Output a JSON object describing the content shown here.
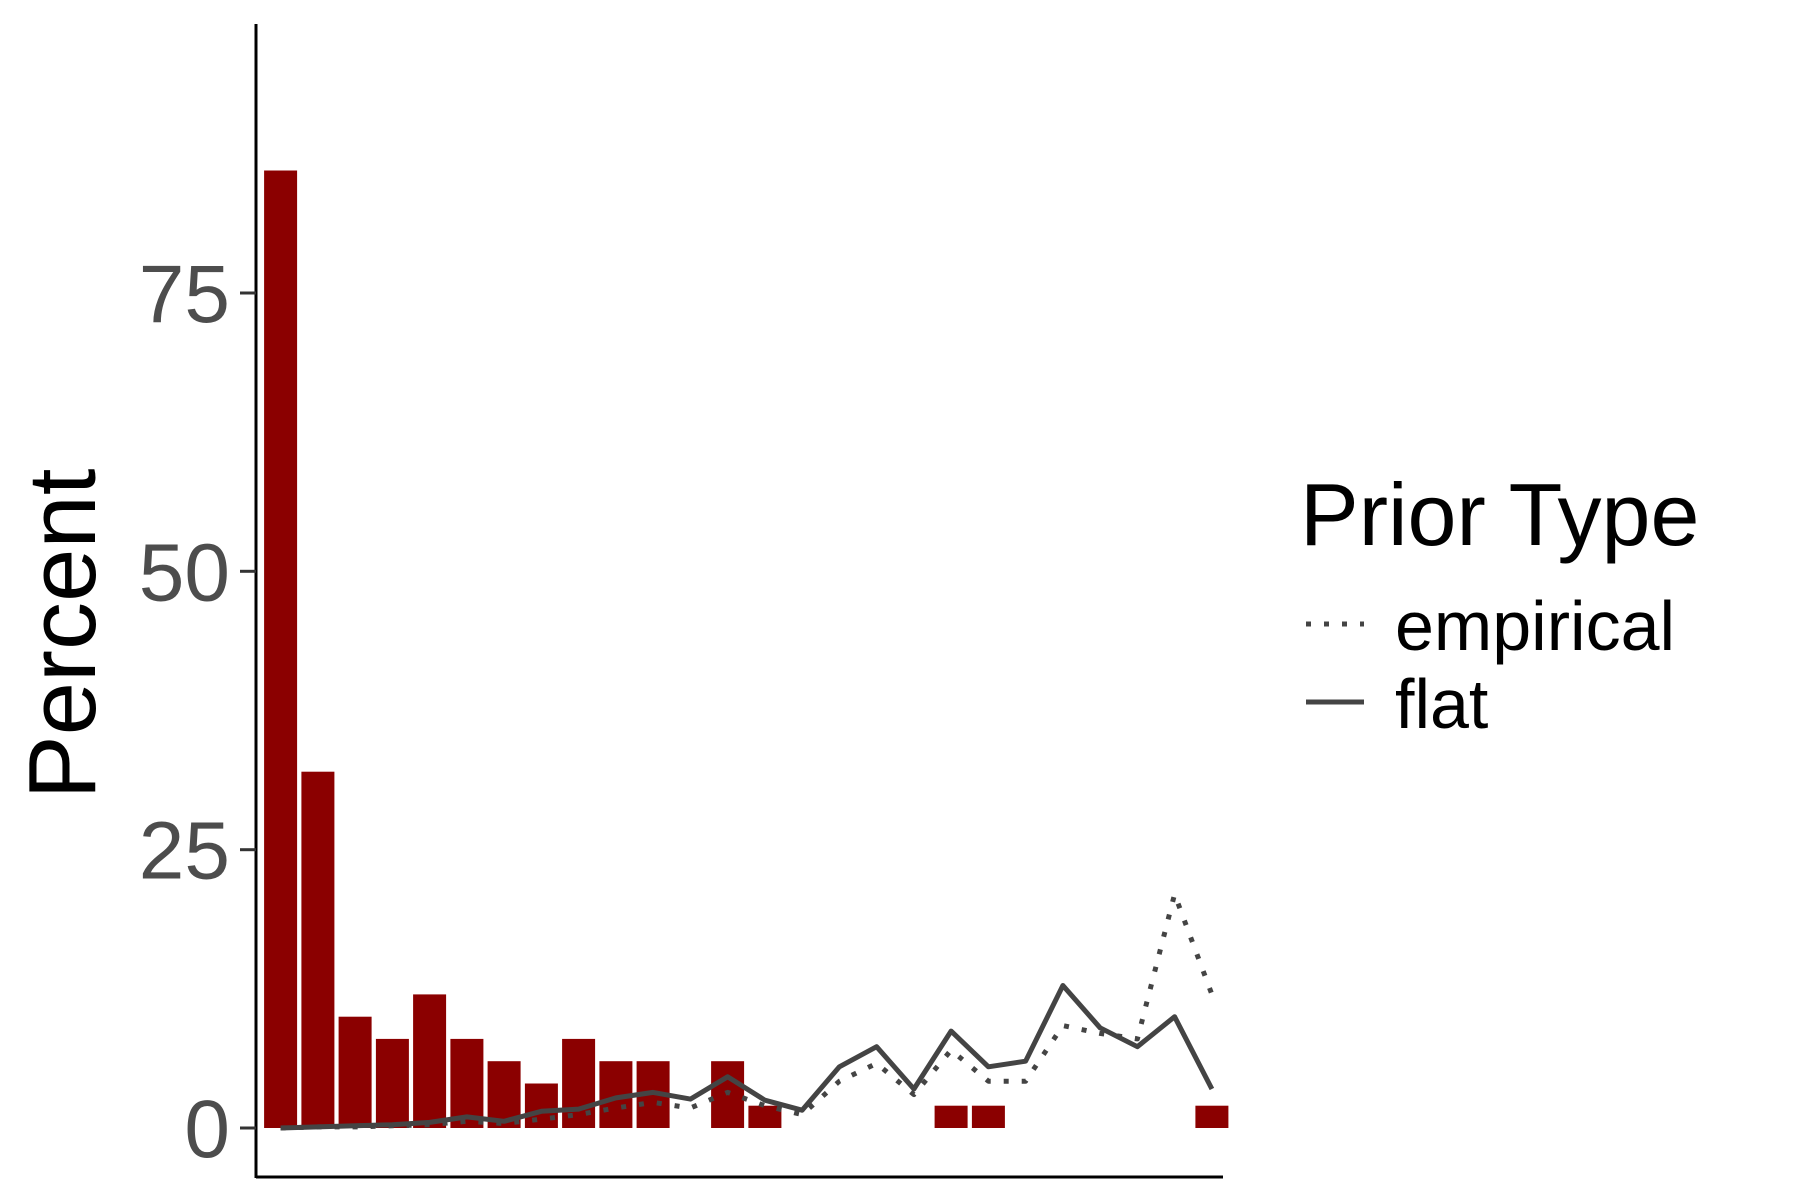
{
  "chart_data": {
    "type": "bar",
    "title": "",
    "xlabel": "",
    "ylabel": "Percent",
    "ylim": [
      0,
      100
    ],
    "yticks": [
      0,
      25,
      50,
      75
    ],
    "grid": false,
    "legend": {
      "title": "Prior Type",
      "placement": "right",
      "entries": [
        {
          "name": "empirical",
          "linestyle": "dotted"
        },
        {
          "name": "flat",
          "linestyle": "solid"
        }
      ]
    },
    "colors": {
      "bars": "#8b0000",
      "lines": "#444444",
      "axis": "#000000",
      "tick_text": "#4d4d4d"
    },
    "bars": {
      "x": [
        1,
        2,
        3,
        4,
        5,
        6,
        7,
        8,
        9,
        10,
        11,
        13,
        14,
        19,
        20,
        26
      ],
      "values": [
        86,
        32,
        10,
        8,
        12,
        8,
        6,
        4,
        8,
        6,
        6,
        6,
        2,
        2,
        2,
        2
      ]
    },
    "series": [
      {
        "name": "empirical",
        "linestyle": "dotted",
        "x": [
          1,
          2,
          3,
          4,
          5,
          6,
          7,
          8,
          9,
          10,
          11,
          12,
          13,
          14,
          15,
          16,
          17,
          18,
          19,
          20,
          21,
          22,
          23,
          24,
          25,
          26
        ],
        "values": [
          0,
          0.1,
          0.1,
          0.2,
          0.3,
          0.6,
          0.4,
          0.8,
          1.2,
          1.8,
          2.3,
          1.8,
          3.2,
          2.0,
          1.2,
          4.2,
          5.8,
          3.0,
          7.0,
          4.2,
          4.2,
          9.2,
          8.5,
          8.0,
          21.0,
          12.0
        ]
      },
      {
        "name": "flat",
        "linestyle": "solid",
        "x": [
          1,
          2,
          3,
          4,
          5,
          6,
          7,
          8,
          9,
          10,
          11,
          12,
          13,
          14,
          15,
          16,
          17,
          18,
          19,
          20,
          21,
          22,
          23,
          24,
          25,
          26
        ],
        "values": [
          0,
          0.1,
          0.2,
          0.3,
          0.5,
          1.0,
          0.6,
          1.5,
          1.7,
          2.7,
          3.2,
          2.6,
          4.6,
          2.5,
          1.6,
          5.5,
          7.3,
          3.5,
          8.7,
          5.5,
          6.0,
          12.8,
          9.0,
          7.3,
          10.0,
          3.5
        ]
      }
    ]
  }
}
